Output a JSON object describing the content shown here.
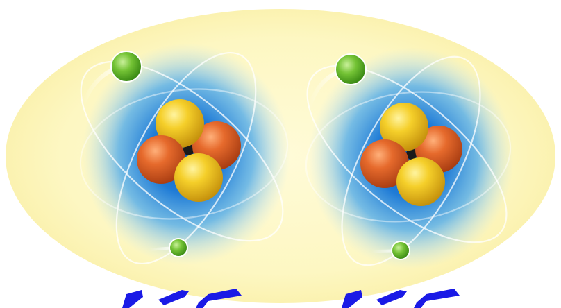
{
  "palette": {
    "background": "#ffffff",
    "halo": "#fdf8c6",
    "glow_core": "#0d5fc2",
    "glow_mid": "#3e9be0",
    "orbit_line": "#ffffff",
    "electron": "#6ab82e",
    "proton": "#f2c21c",
    "neutron": "#e0632a",
    "caption_stroke": "#1a1ae6"
  },
  "atoms": [
    {
      "id": "left",
      "electrons": 2,
      "protons": 2,
      "neutrons": 2
    },
    {
      "id": "right",
      "electrons": 2,
      "protons": 2,
      "neutrons": 2
    }
  ]
}
